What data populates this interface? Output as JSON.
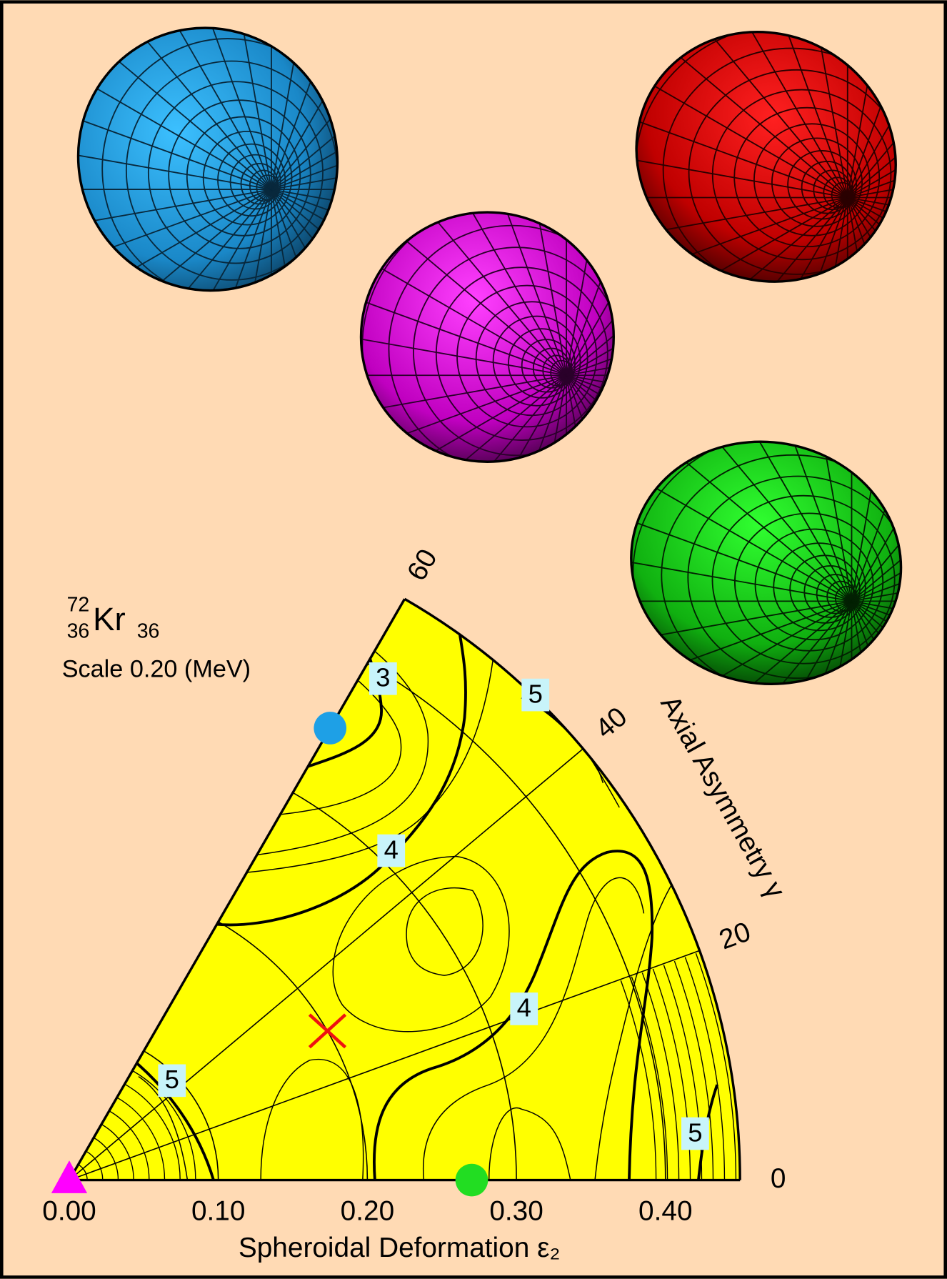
{
  "chart_data": {
    "type": "polar-wedge",
    "nucleus_label": {
      "mass": "72",
      "proton_number": "36",
      "symbol": "Kr",
      "neutron_number": "36"
    },
    "scale_label": "Scale 0.20 (MeV)",
    "xlabel": "Spheroidal Deformation ε₂",
    "ylabel": "Axial Asymmetry γ",
    "xlim": [
      0,
      0.45
    ],
    "xticks": [
      {
        "value": 0,
        "label": "0.00"
      },
      {
        "value": 0.1,
        "label": "0.10"
      },
      {
        "value": 0.2,
        "label": "0.20"
      },
      {
        "value": 0.3,
        "label": "0.30"
      },
      {
        "value": 0.4,
        "label": "0.40"
      }
    ],
    "ylim": [
      0,
      60
    ],
    "yticks": [
      0,
      20,
      40,
      60
    ],
    "contour_labels": [
      3,
      5,
      4,
      4,
      5,
      5
    ],
    "markers": [
      {
        "x": 0,
        "y": 0,
        "color": "#ff00ff",
        "shape": "triangle"
      },
      {
        "x": 0.35,
        "y": 60,
        "color": "#1ea0e6",
        "shape": "circle"
      },
      {
        "x": 0.27,
        "y": 0,
        "color": "#22dd22",
        "shape": "circle"
      },
      {
        "x": 0.2,
        "y": 30,
        "color": "#ee1111",
        "shape": "cross"
      }
    ]
  }
}
